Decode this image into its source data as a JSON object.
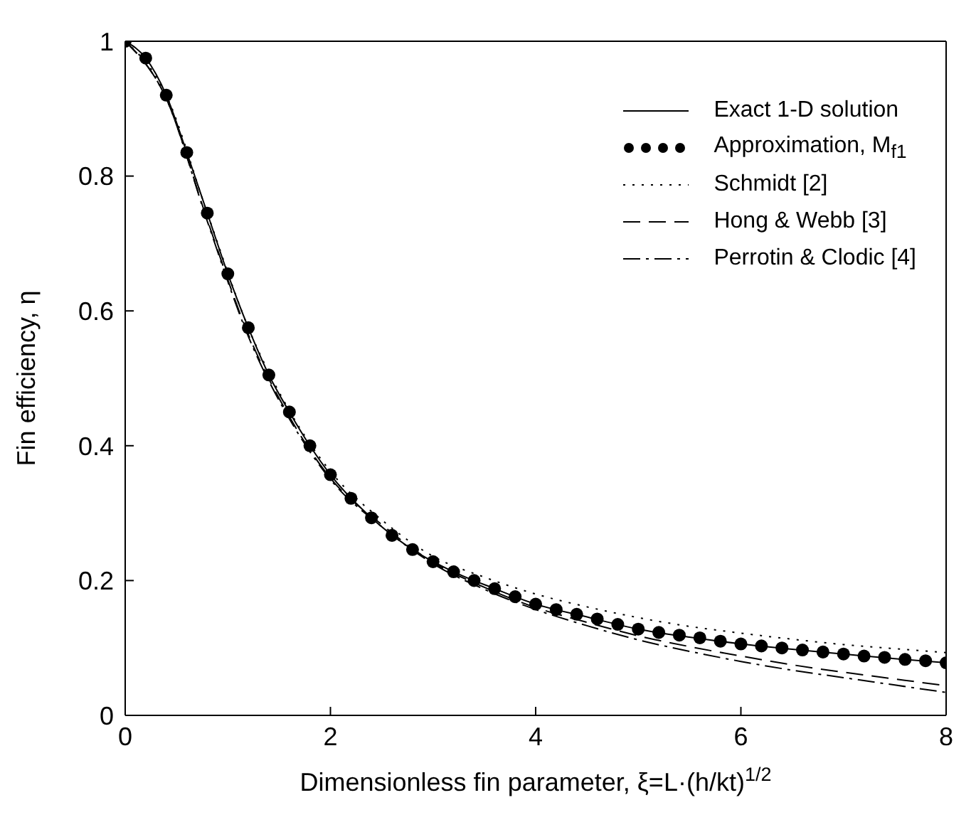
{
  "chart_data": {
    "type": "line",
    "xlabel": "Dimensionless fin parameter, ξ=L·(h/kt)$^{1/2}$",
    "ylabel": "Fin efficiency, η",
    "xlim": [
      0,
      8
    ],
    "xticks": [
      0,
      2,
      4,
      6,
      8
    ],
    "ylim": [
      0,
      1
    ],
    "yticks": [
      0,
      0.2,
      0.4,
      0.6,
      0.8,
      1
    ],
    "grid": false,
    "legend": "top right",
    "series": [
      {
        "name": "Exact 1-D solution",
        "type": "line",
        "color": "#000000",
        "line_style": "solid",
        "marker": "none",
        "x": [
          0,
          0.2,
          0.4,
          0.6,
          0.8,
          1,
          1.2,
          1.4,
          1.6,
          1.8,
          2,
          2.4,
          2.8,
          3.2,
          3.6,
          4,
          4.5,
          5,
          5.5,
          6,
          6.5,
          7,
          7.5,
          8
        ],
        "values": [
          1,
          0.975,
          0.92,
          0.835,
          0.745,
          0.655,
          0.575,
          0.505,
          0.45,
          0.4,
          0.357,
          0.293,
          0.246,
          0.213,
          0.188,
          0.165,
          0.146,
          0.128,
          0.116,
          0.106,
          0.098,
          0.091,
          0.084,
          0.078
        ]
      },
      {
        "name": "Approximation, M$_{f1}$",
        "type": "scatter",
        "color": "#000000",
        "marker": "circle",
        "x": [
          0,
          0.2,
          0.4,
          0.6,
          0.8,
          1,
          1.2,
          1.4,
          1.6,
          1.8,
          2,
          2.2,
          2.4,
          2.6,
          2.8,
          3,
          3.2,
          3.4,
          3.6,
          3.8,
          4,
          4.2,
          4.4,
          4.6,
          4.8,
          5,
          5.2,
          5.4,
          5.6,
          5.8,
          6,
          6.2,
          6.4,
          6.6,
          6.8,
          7,
          7.2,
          7.4,
          7.6,
          7.8,
          8
        ],
        "values": [
          1,
          0.975,
          0.92,
          0.835,
          0.745,
          0.655,
          0.575,
          0.505,
          0.45,
          0.4,
          0.357,
          0.322,
          0.293,
          0.267,
          0.246,
          0.228,
          0.213,
          0.2,
          0.188,
          0.176,
          0.165,
          0.157,
          0.15,
          0.143,
          0.135,
          0.128,
          0.123,
          0.119,
          0.115,
          0.11,
          0.106,
          0.103,
          0.1,
          0.097,
          0.094,
          0.091,
          0.088,
          0.086,
          0.083,
          0.081,
          0.078
        ]
      },
      {
        "name": "Schmidt [2]",
        "type": "line",
        "color": "#000000",
        "line_style": "dotted",
        "marker": "none",
        "x": [
          0,
          0.4,
          0.8,
          1.2,
          1.6,
          2,
          2.5,
          3,
          3.5,
          4,
          4.5,
          5,
          5.5,
          6,
          6.5,
          7,
          7.5,
          8
        ],
        "values": [
          1,
          0.92,
          0.745,
          0.575,
          0.452,
          0.362,
          0.29,
          0.236,
          0.205,
          0.18,
          0.161,
          0.145,
          0.132,
          0.122,
          0.113,
          0.105,
          0.099,
          0.093
        ]
      },
      {
        "name": "Hong & Webb [3]",
        "type": "line",
        "color": "#000000",
        "line_style": "dashed",
        "marker": "none",
        "x": [
          0,
          0.4,
          0.8,
          1.2,
          1.6,
          2,
          2.5,
          3,
          3.5,
          4,
          4.5,
          5,
          5.5,
          6,
          6.5,
          7,
          7.5,
          8
        ],
        "values": [
          1,
          0.915,
          0.735,
          0.565,
          0.443,
          0.352,
          0.283,
          0.227,
          0.19,
          0.16,
          0.138,
          0.118,
          0.102,
          0.088,
          0.075,
          0.064,
          0.054,
          0.044
        ]
      },
      {
        "name": "Perrotin & Clodic [4]",
        "type": "line",
        "color": "#000000",
        "line_style": "dashdot",
        "marker": "none",
        "x": [
          0,
          0.4,
          0.8,
          1.2,
          1.6,
          2,
          2.5,
          3,
          3.5,
          4,
          4.5,
          5,
          5.5,
          6,
          6.5,
          7,
          7.5,
          8
        ],
        "values": [
          1,
          0.915,
          0.733,
          0.562,
          0.44,
          0.35,
          0.28,
          0.225,
          0.187,
          0.157,
          0.133,
          0.112,
          0.095,
          0.08,
          0.067,
          0.056,
          0.045,
          0.034
        ]
      }
    ]
  }
}
